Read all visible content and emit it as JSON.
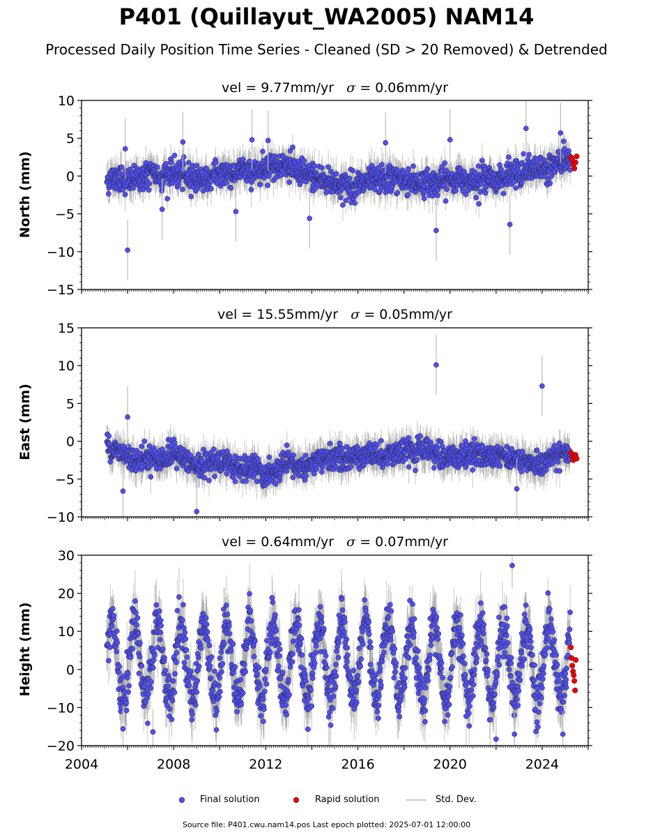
{
  "title": "P401 (Quillayut_WA2005) NAM14",
  "subtitle": "Processed Daily Position Time Series - Cleaned (SD > 20 Removed) & Detrended",
  "footer": "Source file: P401.cwu.nam14.pos  Last epoch plotted: 2025-07-01 12:00:00",
  "legend": {
    "final": "Final solution",
    "rapid": "Rapid solution",
    "std": "Std. Dev."
  },
  "colors": {
    "final": "#4f4ff0",
    "rapid": "#ee0000",
    "std": "#bbbbbb"
  },
  "panels": [
    {
      "ylabel": "North (mm)",
      "vel_text": "vel = 9.77mm/yr",
      "sigma_symbol": "σ",
      "sigma_text": " = 0.06mm/yr"
    },
    {
      "ylabel": "East (mm)",
      "vel_text": "vel = 15.55mm/yr",
      "sigma_symbol": "σ",
      "sigma_text": " = 0.05mm/yr"
    },
    {
      "ylabel": "Height (mm)",
      "vel_text": "vel = 0.64mm/yr",
      "sigma_symbol": "σ",
      "sigma_text": " = 0.07mm/yr"
    }
  ],
  "chart_data": [
    {
      "type": "scatter",
      "xlabel": "",
      "ylabel": "North (mm)",
      "xlim": [
        2004.0,
        2026.0
      ],
      "ylim": [
        -15,
        10
      ],
      "yticks": [
        10,
        5,
        0,
        -5,
        -10,
        -15
      ],
      "xticks": [],
      "grid": false,
      "legend_placement": "bottom-center",
      "series": [
        {
          "name": "Final solution",
          "x": [
            2005.2,
            2005.6,
            2006.0,
            2006.5,
            2007.0,
            2007.5,
            2008.0,
            2008.5,
            2009.0,
            2009.5,
            2010.0,
            2010.5,
            2011.0,
            2011.5,
            2012.0,
            2012.5,
            2013.0,
            2013.5,
            2014.0,
            2014.5,
            2015.0,
            2015.5,
            2016.0,
            2016.5,
            2017.0,
            2017.5,
            2018.0,
            2018.5,
            2019.0,
            2019.5,
            2020.0,
            2020.5,
            2021.0,
            2021.5,
            2022.0,
            2022.5,
            2023.0,
            2023.5,
            2024.0,
            2024.5,
            2025.0
          ],
          "y": [
            -0.5,
            0.0,
            -0.8,
            -0.3,
            0.3,
            0.0,
            0.3,
            0.0,
            -0.2,
            -0.5,
            0.5,
            0.3,
            0.8,
            0.5,
            1.3,
            1.5,
            1.3,
            0.3,
            0.0,
            -0.5,
            -1.0,
            -1.3,
            -1.2,
            -0.8,
            -0.5,
            -0.3,
            -0.5,
            -0.8,
            -1.0,
            -0.8,
            -0.5,
            -0.5,
            -0.3,
            -0.3,
            -0.5,
            0.0,
            0.3,
            0.8,
            1.0,
            1.5,
            2.0
          ]
        },
        {
          "name": "Final solution",
          "outliers": true,
          "x": [
            2006.0,
            2005.9,
            2007.5,
            2008.4,
            2010.7,
            2011.4,
            2013.9,
            2017.2,
            2019.4,
            2020.0,
            2022.6,
            2023.3,
            2024.8,
            2012.1
          ],
          "y": [
            -9.8,
            3.6,
            -4.4,
            4.5,
            -4.7,
            4.8,
            -5.6,
            4.4,
            -7.2,
            4.8,
            -6.4,
            6.3,
            5.7,
            4.7
          ]
        },
        {
          "name": "Rapid solution",
          "x": [
            2025.25,
            2025.3,
            2025.35,
            2025.4,
            2025.45,
            2025.5
          ],
          "y": [
            2.5,
            2.2,
            1.5,
            1.0,
            1.8,
            2.6
          ]
        }
      ]
    },
    {
      "type": "scatter",
      "xlabel": "",
      "ylabel": "East (mm)",
      "xlim": [
        2004.0,
        2026.0
      ],
      "ylim": [
        -10,
        15
      ],
      "yticks": [
        15,
        10,
        5,
        0,
        -5,
        -10
      ],
      "xticks": [],
      "grid": false,
      "legend_placement": "bottom-center",
      "series": [
        {
          "name": "Final solution",
          "x": [
            2005.2,
            2005.6,
            2006.0,
            2006.5,
            2007.0,
            2007.5,
            2008.0,
            2008.5,
            2009.0,
            2009.5,
            2010.0,
            2010.5,
            2011.0,
            2011.5,
            2012.0,
            2012.5,
            2013.0,
            2013.5,
            2014.0,
            2014.5,
            2015.0,
            2015.5,
            2016.0,
            2016.5,
            2017.0,
            2017.5,
            2018.0,
            2018.5,
            2019.0,
            2019.5,
            2020.0,
            2020.5,
            2021.0,
            2021.5,
            2022.0,
            2022.5,
            2023.0,
            2023.5,
            2024.0,
            2024.5,
            2025.0
          ],
          "y": [
            -0.5,
            -1.5,
            -2.0,
            -2.5,
            -2.0,
            -2.5,
            -1.5,
            -2.5,
            -3.5,
            -3.0,
            -2.5,
            -3.0,
            -4.0,
            -3.5,
            -4.5,
            -4.0,
            -3.0,
            -3.5,
            -3.0,
            -2.5,
            -2.0,
            -2.5,
            -2.0,
            -1.5,
            -2.0,
            -1.5,
            -1.5,
            -1.5,
            -1.0,
            -2.0,
            -2.0,
            -2.0,
            -1.5,
            -2.0,
            -1.5,
            -2.0,
            -2.5,
            -3.0,
            -3.0,
            -2.0,
            -1.5
          ]
        },
        {
          "name": "Final solution",
          "outliers": true,
          "x": [
            2006.0,
            2005.8,
            2009.0,
            2019.4,
            2024.0,
            2022.9
          ],
          "y": [
            3.2,
            -6.6,
            -9.3,
            10.1,
            7.3,
            -6.3
          ]
        },
        {
          "name": "Rapid solution",
          "x": [
            2025.25,
            2025.3,
            2025.35,
            2025.4,
            2025.45,
            2025.5
          ],
          "y": [
            -1.5,
            -2.0,
            -2.5,
            -2.0,
            -1.8,
            -2.3
          ]
        }
      ]
    },
    {
      "type": "scatter",
      "xlabel": "",
      "ylabel": "Height (mm)",
      "xlim": [
        2004.0,
        2026.0
      ],
      "ylim": [
        -20,
        30
      ],
      "yticks": [
        30,
        20,
        10,
        0,
        -10,
        -20
      ],
      "xticks": [
        "2004",
        "2008",
        "2012",
        "2016",
        "2020",
        "2024"
      ],
      "grid": false,
      "legend_placement": "bottom-center",
      "series": [
        {
          "name": "Final solution",
          "seasonal_amplitude_mm": 10,
          "x": [
            2005.0,
            2005.25,
            2005.5,
            2005.75,
            2006.0,
            2006.5,
            2007.0,
            2007.5,
            2008.0,
            2009.0,
            2010.0,
            2011.0,
            2012.0,
            2013.0,
            2014.0,
            2015.0,
            2016.0,
            2017.0,
            2018.0,
            2019.0,
            2020.0,
            2021.0,
            2022.0,
            2023.0,
            2024.0,
            2025.0
          ],
          "y": [
            2,
            12,
            2,
            -8,
            8,
            -10,
            14,
            -12,
            14,
            12,
            10,
            10,
            12,
            10,
            12,
            8,
            10,
            14,
            10,
            10,
            10,
            10,
            10,
            14,
            12,
            8
          ]
        },
        {
          "name": "Final solution",
          "outliers": true,
          "x": [
            2005.8,
            2007.1,
            2022.0,
            2022.7,
            2022.8,
            2024.9
          ],
          "y": [
            -15.6,
            -16.4,
            -18.3,
            27.3,
            -17.0,
            -17.0
          ]
        },
        {
          "name": "Rapid solution",
          "x": [
            2025.25,
            2025.28,
            2025.31,
            2025.34,
            2025.37,
            2025.4,
            2025.43,
            2025.46
          ],
          "y": [
            5.8,
            3.0,
            1.0,
            -0.5,
            -1.5,
            -3.0,
            -5.5,
            2.5
          ]
        }
      ]
    }
  ]
}
